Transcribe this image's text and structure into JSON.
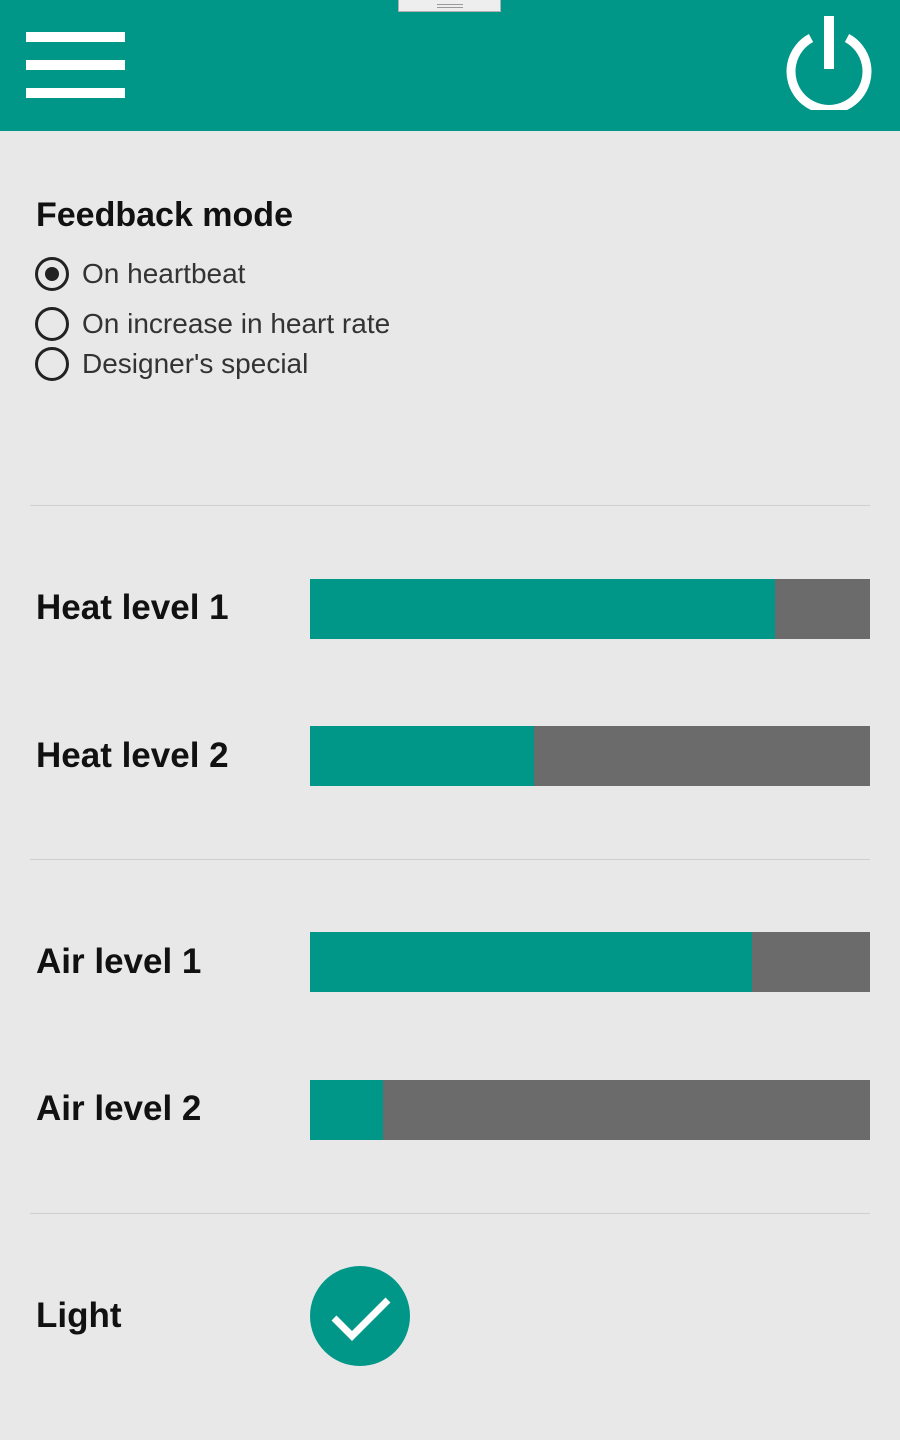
{
  "colors": {
    "accent": "#009688",
    "track": "#6b6b6b",
    "background": "#e8e8e8"
  },
  "header": {
    "menu_icon": "hamburger-menu-icon",
    "power_icon": "power-icon"
  },
  "feedback": {
    "title": "Feedback mode",
    "options": [
      {
        "label": "On heartbeat",
        "selected": true
      },
      {
        "label": "On increase in heart rate",
        "selected": false
      },
      {
        "label": "Designer's special",
        "selected": false
      }
    ]
  },
  "levels": {
    "heat1": {
      "label": "Heat level 1",
      "value": 0.83
    },
    "heat2": {
      "label": "Heat level 2",
      "value": 0.4
    },
    "air1": {
      "label": "Air level 1",
      "value": 0.79
    },
    "air2": {
      "label": "Air level 2",
      "value": 0.13
    }
  },
  "light": {
    "label": "Light",
    "checked": true,
    "icon": "checkmark-icon"
  }
}
